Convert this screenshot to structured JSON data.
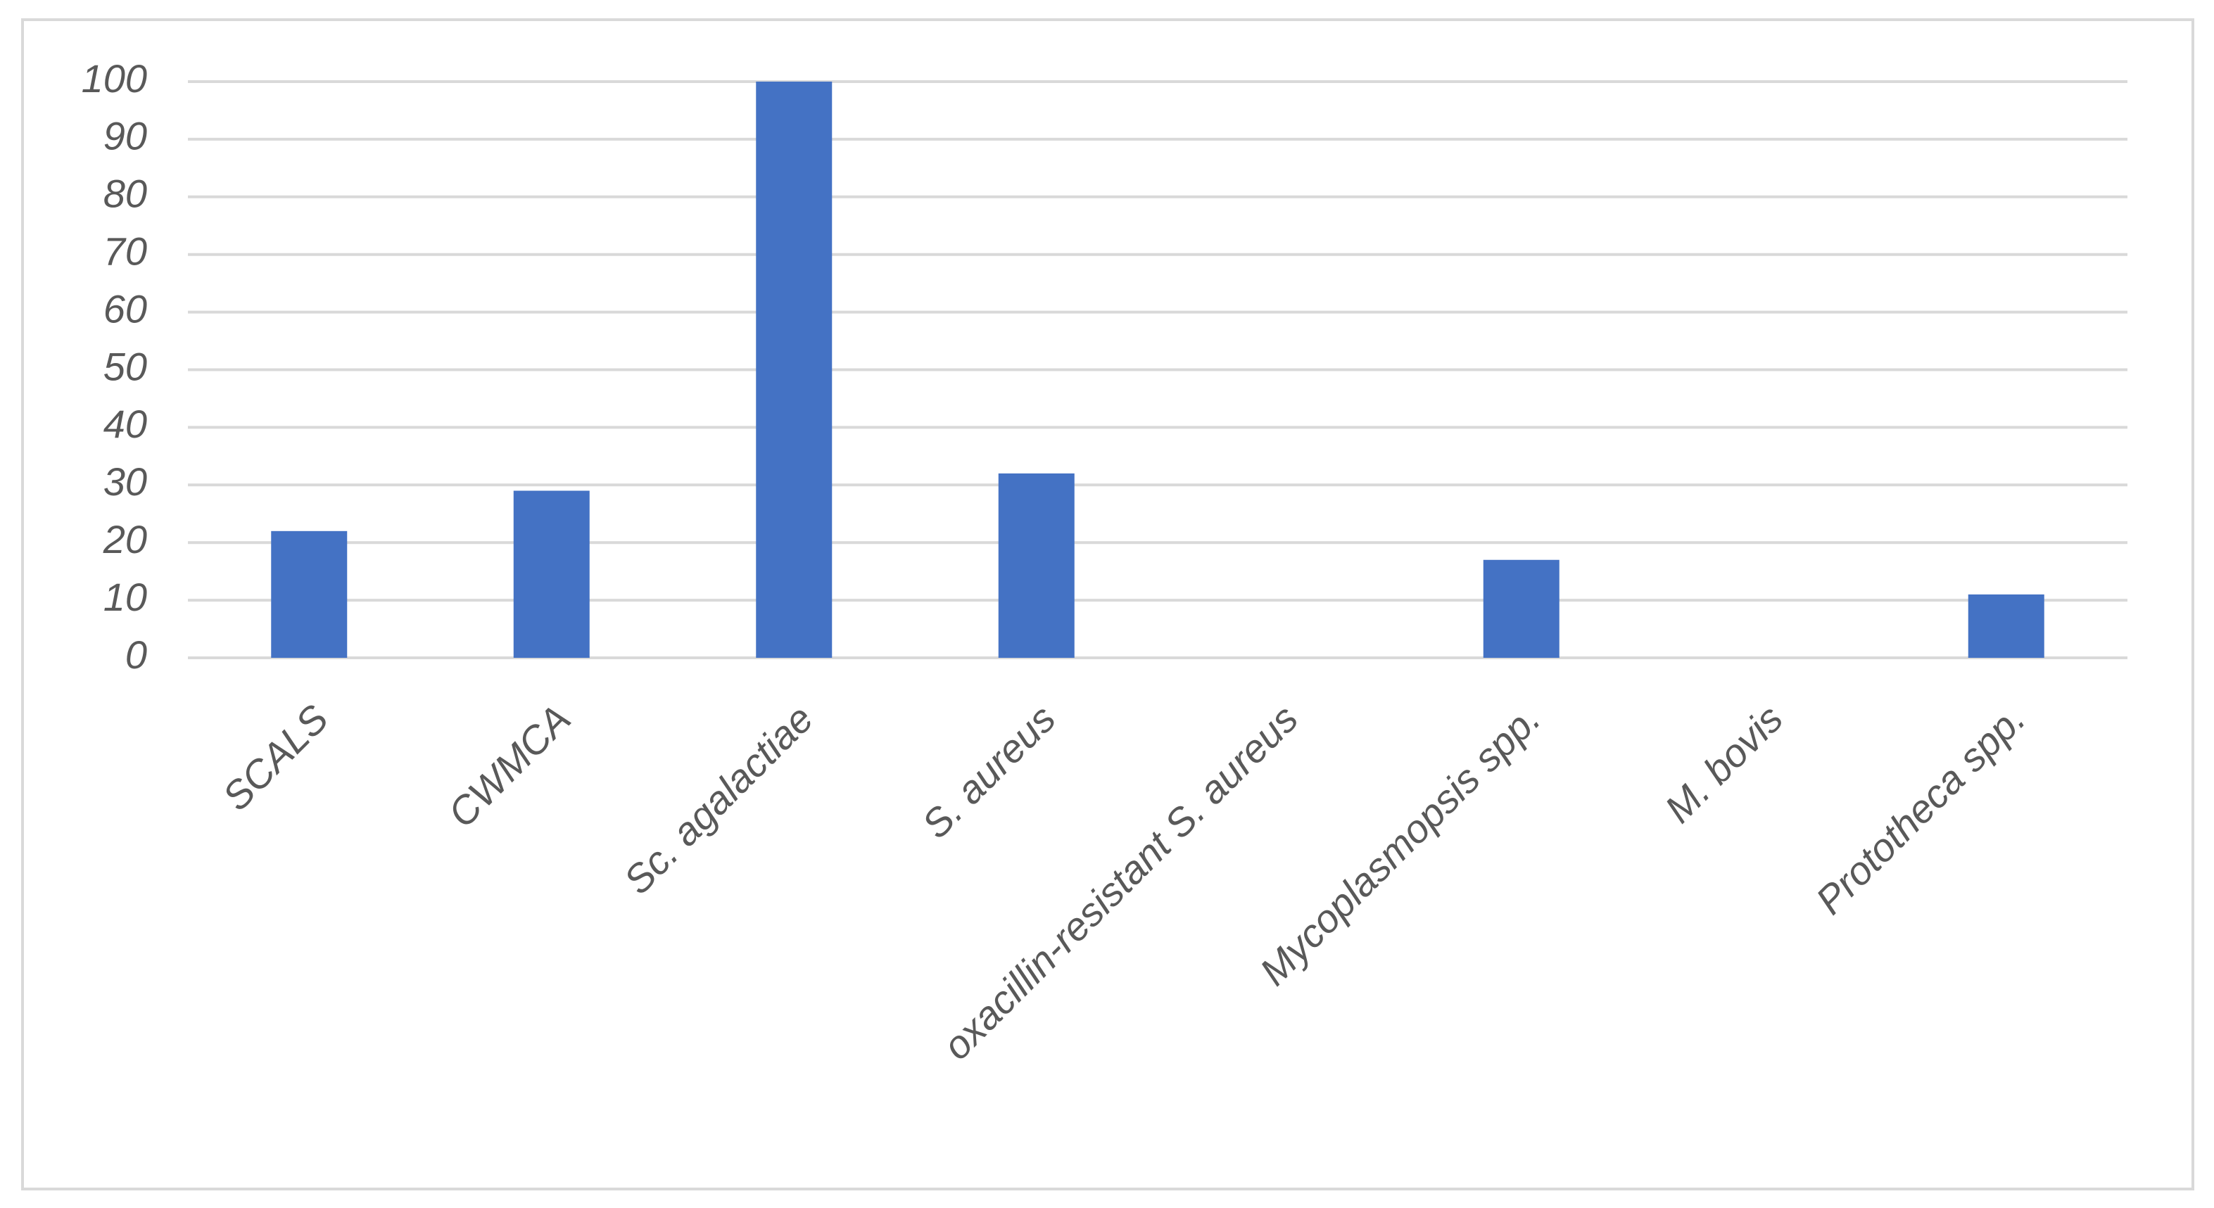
{
  "chart_data": {
    "type": "bar",
    "categories": [
      "SCALS",
      "CWMCA",
      "Sc. agalactiae",
      "S. aureus",
      "oxacillin-resistant S. aureus",
      "Mycoplasmopsis spp.",
      "M. bovis",
      "Prototheca spp."
    ],
    "values": [
      22,
      29,
      100,
      32,
      0,
      17,
      0,
      11
    ],
    "color": "#4472c4",
    "ylim": [
      0,
      100
    ],
    "yticks": [
      0,
      10,
      20,
      30,
      40,
      50,
      60,
      70,
      80,
      90,
      100
    ],
    "grid": true
  }
}
